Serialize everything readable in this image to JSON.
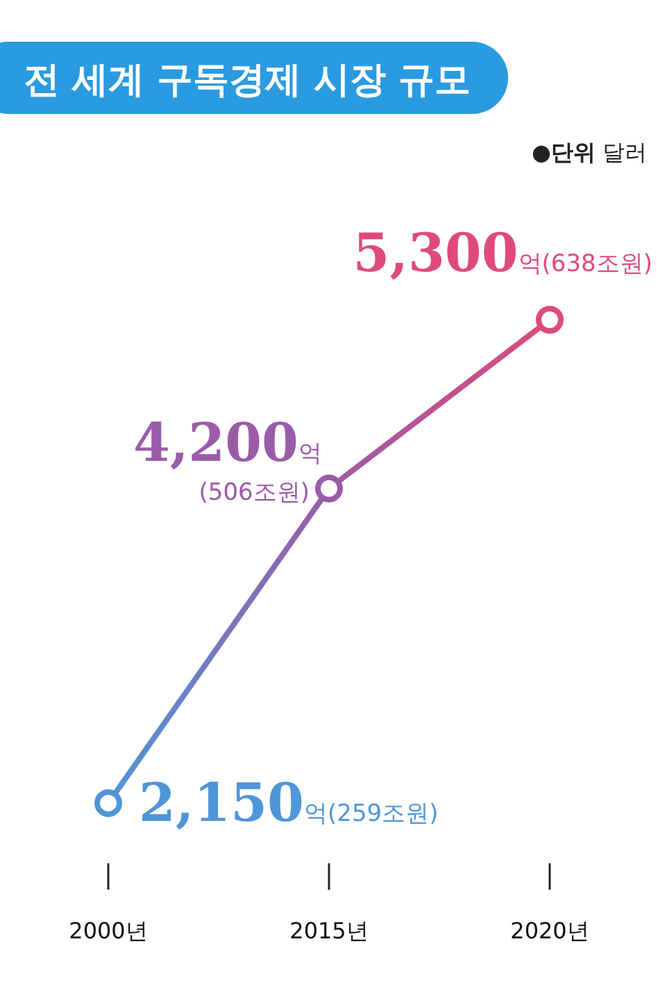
{
  "chart_data": {
    "type": "line",
    "title": "전 세계 구독경제 시장 규모",
    "subtitle": "●단위 달러",
    "categories": [
      "2000년",
      "2015년",
      "2020년"
    ],
    "values": [
      2150,
      4200,
      5300
    ],
    "colors": [
      "#4f96d8",
      "#9a5ca8",
      "#df4a7c"
    ],
    "value_labels": [
      "2,150억(259조원)",
      "4,200억(506조원)",
      "5,300억(638조원)"
    ],
    "marker": "circle",
    "line_style": "solid"
  }
}
